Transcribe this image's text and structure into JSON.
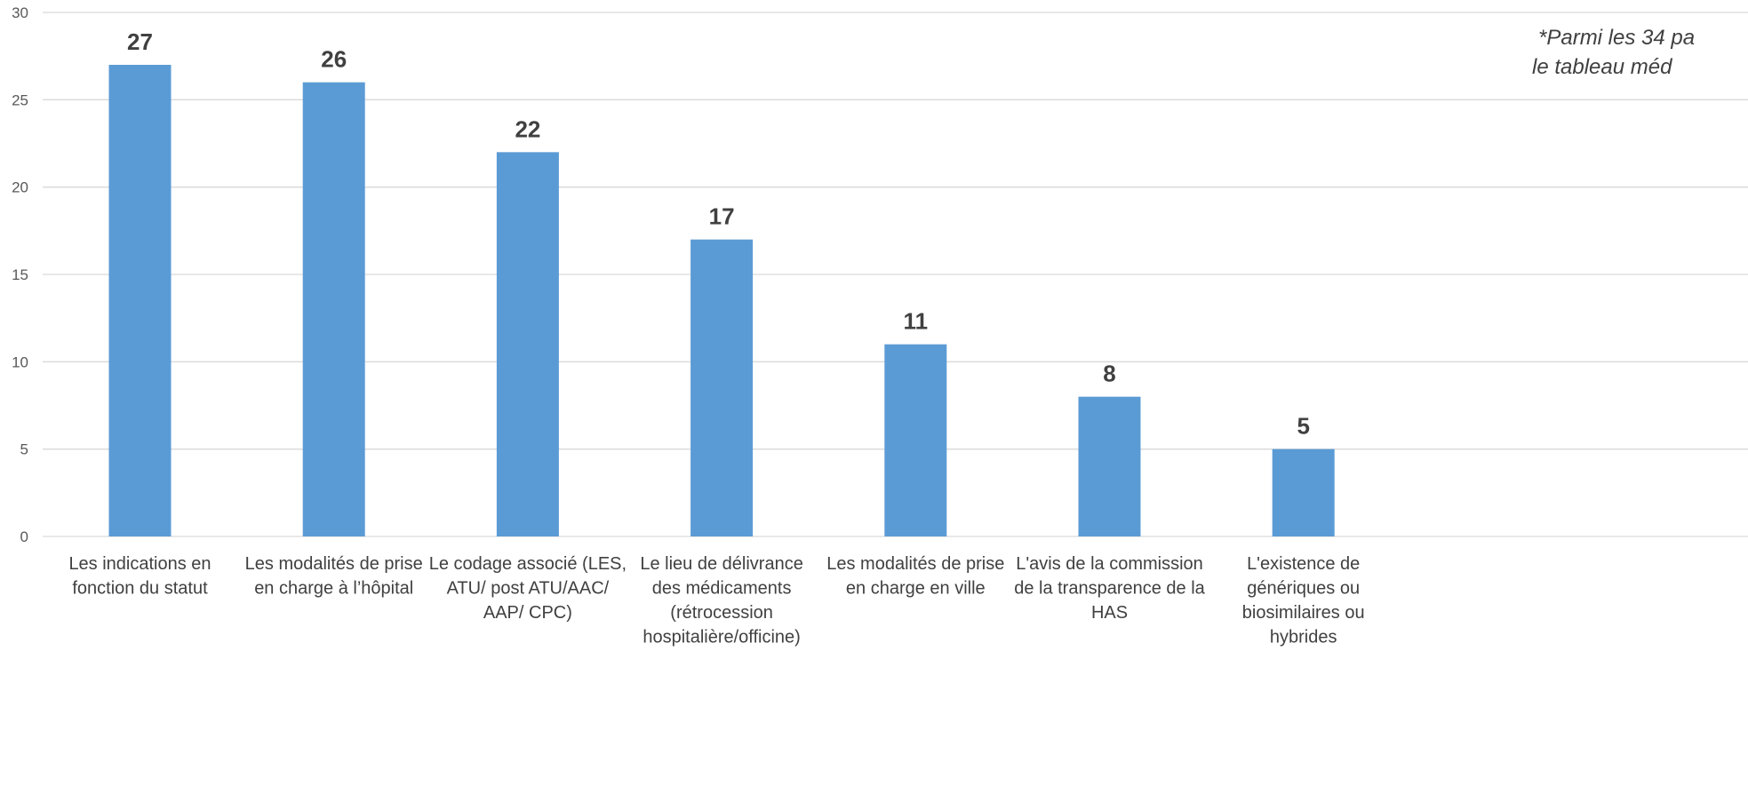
{
  "chart_data": {
    "type": "bar",
    "categories": [
      [
        "Les indications en",
        "fonction du statut"
      ],
      [
        "Les modalités de prise",
        "en charge à l’hôpital"
      ],
      [
        "Le codage associé (LES,",
        "ATU/ post ATU/AAC/",
        "AAP/ CPC)"
      ],
      [
        "Le lieu de délivrance",
        "des médicaments",
        "(rétrocession",
        "hospitalière/officine)"
      ],
      [
        "Les modalités de prise",
        "en charge en ville"
      ],
      [
        "L'avis de la commission",
        "de la transparence de la",
        "HAS"
      ],
      [
        "L'existence de",
        "génériques ou",
        "biosimilaires ou",
        "hybrides"
      ]
    ],
    "values": [
      27,
      26,
      22,
      17,
      11,
      8,
      5
    ],
    "data_labels": [
      "27",
      "26",
      "22",
      "17",
      "11",
      "8",
      "5"
    ],
    "yticks": [
      "0",
      "5",
      "10",
      "15",
      "20",
      "25",
      "30"
    ],
    "ylim": [
      0,
      30
    ],
    "grid": true,
    "bar_color": "#5b9bd5",
    "annotation": [
      "*Parmi les 34 pa",
      "le tableau méd"
    ]
  }
}
